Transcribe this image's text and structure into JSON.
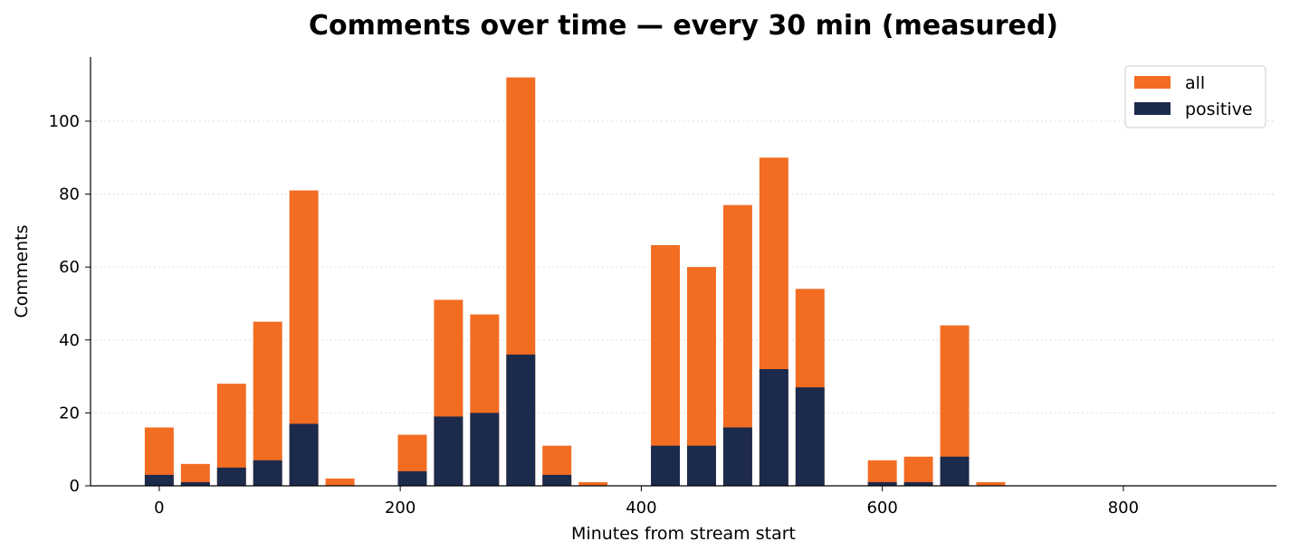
{
  "chart_data": {
    "type": "bar",
    "stacked": true,
    "title": "Comments over time — every 30 min (measured)",
    "xlabel": "Minutes from stream start",
    "ylabel": "Comments",
    "x": [
      0,
      30,
      60,
      90,
      120,
      150,
      180,
      210,
      240,
      270,
      300,
      330,
      360,
      390,
      420,
      450,
      480,
      510,
      540,
      570,
      600,
      630,
      660,
      690
    ],
    "series": [
      {
        "name": "all",
        "color": "#f26c22",
        "values": [
          16,
          6,
          28,
          45,
          81,
          2,
          0,
          14,
          51,
          47,
          112,
          11,
          1,
          0,
          66,
          60,
          77,
          90,
          54,
          0,
          7,
          8,
          44,
          1
        ]
      },
      {
        "name": "positive",
        "color": "#1c2a4c",
        "values": [
          3,
          1,
          5,
          7,
          17,
          0,
          0,
          4,
          19,
          20,
          36,
          3,
          0,
          0,
          11,
          11,
          16,
          32,
          27,
          0,
          1,
          1,
          8,
          0
        ]
      }
    ],
    "bar_width": 24,
    "xlim": [
      -57,
      927
    ],
    "ylim": [
      0,
      117.6
    ],
    "xticks": [
      0,
      200,
      400,
      600,
      800
    ],
    "yticks": [
      0,
      20,
      40,
      60,
      80,
      100
    ],
    "grid": "y-dotted",
    "legend_position": "top-right",
    "axis_color": "#000000",
    "grid_color": "#dddddd"
  }
}
